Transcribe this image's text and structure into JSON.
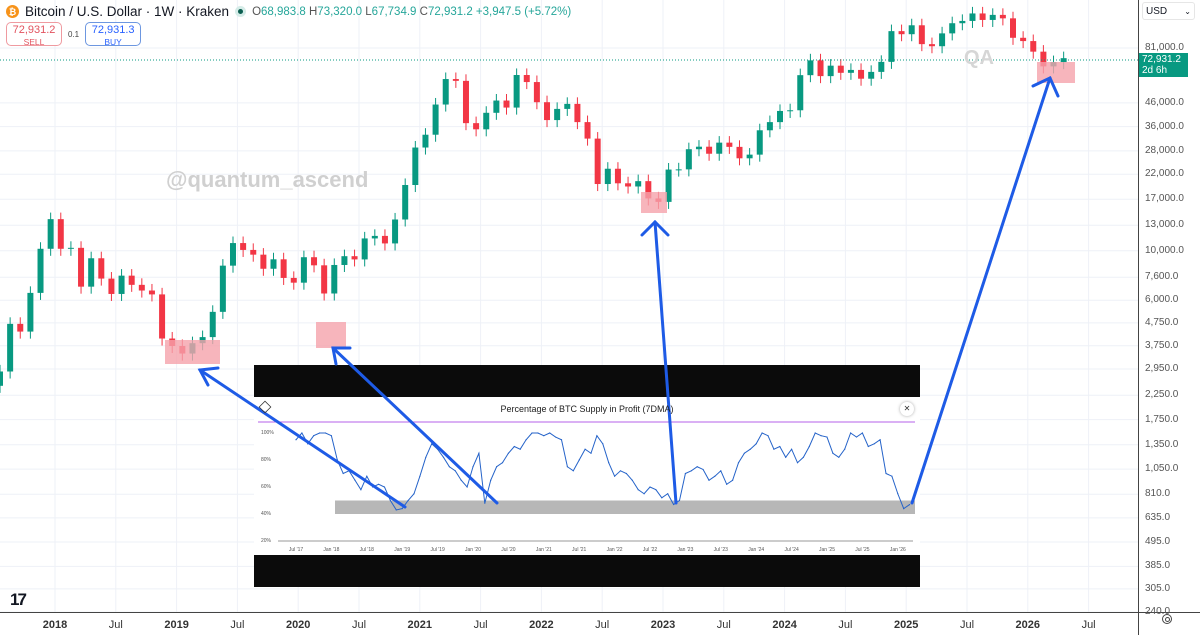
{
  "header": {
    "symbol": "Bitcoin / U.S. Dollar · 1W · Kraken",
    "coin_icon": "bitcoin-icon",
    "open_label": "O",
    "open": "68,983.8",
    "high_label": "H",
    "high": "73,320.0",
    "low_label": "L",
    "low": "67,734.9",
    "close_label": "C",
    "close": "72,931.2",
    "change": "+3,947.5 (+5.72%)"
  },
  "trade": {
    "sell_price": "72,931.2",
    "sell_label": "SELL",
    "spread": "0.1",
    "buy_price": "72,931.3",
    "buy_label": "BUY"
  },
  "currency": "USD",
  "last_price": {
    "value": "72,931.2",
    "countdown": "2d 6h"
  },
  "watermarks": {
    "handle": "@quantum_ascend",
    "initials": "QA"
  },
  "colors": {
    "up": "#089981",
    "down": "#f23645",
    "highlight": "#f5a3ab",
    "arrow": "#1e5be6",
    "inset_line": "#2563c9",
    "inset_band": "#b7b7b7",
    "inset_top_line": "#b561e8"
  },
  "chart_data": [
    {
      "type": "candlestick",
      "title": "Bitcoin / U.S. Dollar · 1W · Kraken",
      "y_scale": "log",
      "ylim": [
        240,
        120000
      ],
      "price_ticks": [
        "81,000.0",
        "46,000.0",
        "36,000.0",
        "28,000.0",
        "22,000.0",
        "17,000.0",
        "13,000.0",
        "10,000.0",
        "7,600.0",
        "6,000.0",
        "4,750.0",
        "3,750.0",
        "2,950.0",
        "2,250.0",
        "1,750.0",
        "1,350.0",
        "1,050.0",
        "810.0",
        "635.0",
        "495.0",
        "385.0",
        "305.0",
        "240.0"
      ],
      "price_tick_values": [
        81000,
        46000,
        36000,
        28000,
        22000,
        17000,
        13000,
        10000,
        7600,
        6000,
        4750,
        3750,
        2950,
        2250,
        1750,
        1350,
        1050,
        810,
        635,
        495,
        385,
        305,
        240
      ],
      "time_ticks": [
        "2018",
        "Jul",
        "2019",
        "Jul",
        "2020",
        "Jul",
        "2021",
        "Jul",
        "2022",
        "Jul",
        "2023",
        "Jul",
        "2024",
        "Jul",
        "2025",
        "Jul",
        "2026",
        "Jul"
      ],
      "grid": true,
      "start": "2017-07",
      "interval": "month",
      "closes": [
        2875,
        4700,
        4340,
        6470,
        10200,
        13850,
        10200,
        10300,
        6900,
        9250,
        7500,
        6400,
        7730,
        7030,
        6630,
        6370,
        4040,
        3740,
        3460,
        3850,
        4100,
        5320,
        8570,
        10820,
        10080,
        9600,
        8300,
        9150,
        7550,
        7190,
        9350,
        8600,
        6430,
        8630,
        9450,
        9140,
        11350,
        11650,
        10780,
        13800,
        19700,
        29000,
        33100,
        45200,
        58800,
        57700,
        37300,
        35000,
        41500,
        47100,
        43800,
        61300,
        57000,
        46300,
        38500,
        43200,
        45500,
        37700,
        31800,
        19900,
        23300,
        20050,
        19400,
        20500,
        17150,
        16550,
        23100,
        23150,
        28500,
        29250,
        27200,
        30500,
        29200,
        25950,
        26950,
        34650,
        37700,
        42300,
        42600,
        61200,
        71300,
        60600,
        67500,
        62700,
        64600,
        59000,
        63300,
        70200,
        96400,
        93400,
        102400,
        84300,
        82500,
        94200,
        104600,
        107100,
        115700,
        108200,
        114000,
        110000,
        90000,
        87000,
        78000,
        67000,
        70000,
        72931.2
      ],
      "first_open": 2480
    },
    {
      "type": "line",
      "title": "Percentage of BTC Supply in Profit (7DMA)",
      "y_ticks": [
        "100%",
        "80%",
        "60%",
        "40%",
        "20%"
      ],
      "ylim": [
        20,
        105
      ],
      "x_ticks": [
        "Jul '17",
        "Jan '18",
        "Jul '18",
        "Jan '19",
        "Jul '19",
        "Jan '20",
        "Jul '20",
        "Jan '21",
        "Jul '21",
        "Jan '22",
        "Jul '22",
        "Jan '23",
        "Jul '23",
        "Jan '24",
        "Jul '24",
        "Jan '25",
        "Jul '25",
        "Jan '26"
      ],
      "start": "2017-07",
      "interval": "month",
      "values": [
        95,
        100,
        92,
        98,
        100,
        100,
        98,
        80,
        70,
        72,
        65,
        58,
        68,
        60,
        62,
        60,
        50,
        43,
        44,
        50,
        55,
        68,
        82,
        92,
        88,
        82,
        75,
        72,
        65,
        60,
        75,
        85,
        48,
        65,
        75,
        78,
        85,
        90,
        88,
        95,
        100,
        100,
        98,
        100,
        97,
        95,
        75,
        72,
        80,
        88,
        85,
        98,
        92,
        78,
        68,
        72,
        70,
        65,
        58,
        55,
        60,
        58,
        52,
        55,
        47,
        50,
        70,
        72,
        75,
        73,
        65,
        68,
        72,
        62,
        65,
        78,
        85,
        88,
        92,
        100,
        98,
        88,
        90,
        82,
        88,
        78,
        82,
        90,
        100,
        98,
        97,
        85,
        82,
        88,
        100,
        97,
        100,
        90,
        92,
        95,
        70,
        68,
        55,
        44,
        47
      ],
      "band": [
        40,
        50
      ],
      "reference_line": 108
    }
  ]
}
